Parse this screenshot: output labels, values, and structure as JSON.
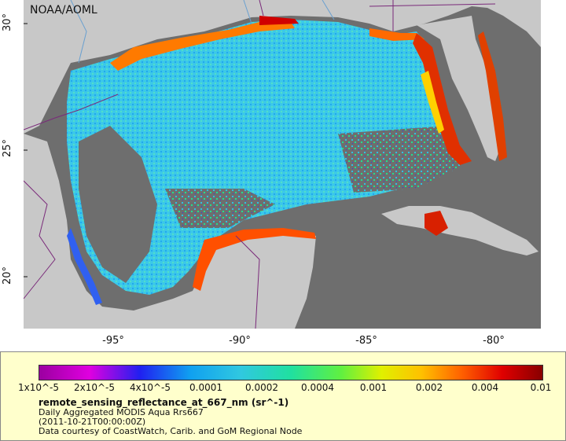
{
  "map": {
    "credit": "NOAA/AOML",
    "lat_ticks": [
      "30°",
      "25°",
      "20°"
    ],
    "lon_ticks": [
      "-95°",
      "-90°",
      "-85°",
      "-80°"
    ],
    "colors": {
      "ocean_nodata": "#6e6e6e",
      "land": "#c8c8c8",
      "borders": "#7a2a7a",
      "rivers": "#6aa0d0"
    }
  },
  "legend": {
    "colorbar_ticks": [
      "1x10^-5",
      "2x10^-5",
      "4x10^-5",
      "0.0001",
      "0.0002",
      "0.0004",
      "0.001",
      "0.002",
      "0.004",
      "0.01"
    ],
    "variable": "remote_sensing_reflectance_at_667_nm (sr^-1)",
    "product": "Daily Aggregated MODIS Aqua Rrs667",
    "time": "(2011-10-21T00:00:00Z)",
    "courtesy": "Data courtesy of CoastWatch, Carib. and GoM Regional Node"
  }
}
